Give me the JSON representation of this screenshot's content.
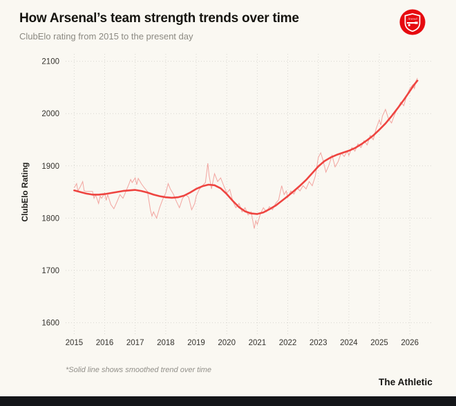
{
  "header": {
    "title": "How Arsenal’s team strength trends over time",
    "subtitle": "ClubElo rating from 2015 to the present day",
    "logo_label": "Arsenal"
  },
  "footer": {
    "footnote": "*Solid line shows smoothed trend over time",
    "brand": "The Athletic"
  },
  "chart_data": {
    "type": "line",
    "title": "How Arsenal’s team strength trends over time",
    "subtitle": "ClubElo rating from 2015 to the present day",
    "xlabel": "",
    "ylabel": "ClubElo Rating",
    "grid": "dotted",
    "legend": "none",
    "x_domain": [
      2014.72,
      2026.72
    ],
    "y_domain": [
      1577,
      2114
    ],
    "x_ticks": [
      2015,
      2016,
      2017,
      2018,
      2019,
      2020,
      2021,
      2022,
      2023,
      2024,
      2025,
      2026
    ],
    "y_ticks": [
      1600,
      1700,
      1800,
      1900,
      2000,
      2100
    ],
    "colors": {
      "raw": "#f2a49f",
      "trend": "#ee4440"
    },
    "series": [
      {
        "name": "ClubElo rating (raw)",
        "style": "raw",
        "points": [
          [
            2015.0,
            1858
          ],
          [
            2015.08,
            1866
          ],
          [
            2015.12,
            1852
          ],
          [
            2015.2,
            1860
          ],
          [
            2015.28,
            1870
          ],
          [
            2015.33,
            1852
          ],
          [
            2015.4,
            1851
          ],
          [
            2015.5,
            1851
          ],
          [
            2015.6,
            1851
          ],
          [
            2015.65,
            1838
          ],
          [
            2015.7,
            1845
          ],
          [
            2015.8,
            1828
          ],
          [
            2015.85,
            1842
          ],
          [
            2015.9,
            1838
          ],
          [
            2016.0,
            1848
          ],
          [
            2016.05,
            1834
          ],
          [
            2016.1,
            1845
          ],
          [
            2016.2,
            1826
          ],
          [
            2016.3,
            1818
          ],
          [
            2016.4,
            1831
          ],
          [
            2016.5,
            1845
          ],
          [
            2016.6,
            1838
          ],
          [
            2016.7,
            1852
          ],
          [
            2016.8,
            1866
          ],
          [
            2016.85,
            1874
          ],
          [
            2016.9,
            1868
          ],
          [
            2017.0,
            1877
          ],
          [
            2017.05,
            1864
          ],
          [
            2017.1,
            1876
          ],
          [
            2017.2,
            1866
          ],
          [
            2017.3,
            1858
          ],
          [
            2017.4,
            1851
          ],
          [
            2017.5,
            1815
          ],
          [
            2017.55,
            1804
          ],
          [
            2017.6,
            1812
          ],
          [
            2017.7,
            1800
          ],
          [
            2017.8,
            1820
          ],
          [
            2017.9,
            1836
          ],
          [
            2018.0,
            1848
          ],
          [
            2018.08,
            1866
          ],
          [
            2018.15,
            1856
          ],
          [
            2018.25,
            1846
          ],
          [
            2018.35,
            1832
          ],
          [
            2018.45,
            1820
          ],
          [
            2018.55,
            1838
          ],
          [
            2018.65,
            1845
          ],
          [
            2018.75,
            1840
          ],
          [
            2018.85,
            1816
          ],
          [
            2018.95,
            1828
          ],
          [
            2019.0,
            1842
          ],
          [
            2019.1,
            1855
          ],
          [
            2019.2,
            1862
          ],
          [
            2019.3,
            1868
          ],
          [
            2019.38,
            1905
          ],
          [
            2019.42,
            1882
          ],
          [
            2019.5,
            1856
          ],
          [
            2019.6,
            1885
          ],
          [
            2019.7,
            1870
          ],
          [
            2019.8,
            1877
          ],
          [
            2019.9,
            1862
          ],
          [
            2020.0,
            1848
          ],
          [
            2020.1,
            1855
          ],
          [
            2020.2,
            1832
          ],
          [
            2020.3,
            1820
          ],
          [
            2020.4,
            1828
          ],
          [
            2020.5,
            1812
          ],
          [
            2020.6,
            1820
          ],
          [
            2020.7,
            1806
          ],
          [
            2020.8,
            1812
          ],
          [
            2020.9,
            1780
          ],
          [
            2020.95,
            1795
          ],
          [
            2021.0,
            1788
          ],
          [
            2021.1,
            1808
          ],
          [
            2021.2,
            1820
          ],
          [
            2021.3,
            1812
          ],
          [
            2021.4,
            1822
          ],
          [
            2021.5,
            1816
          ],
          [
            2021.6,
            1828
          ],
          [
            2021.7,
            1835
          ],
          [
            2021.8,
            1862
          ],
          [
            2021.88,
            1845
          ],
          [
            2021.95,
            1852
          ],
          [
            2022.0,
            1840
          ],
          [
            2022.1,
            1852
          ],
          [
            2022.2,
            1846
          ],
          [
            2022.3,
            1858
          ],
          [
            2022.4,
            1852
          ],
          [
            2022.5,
            1862
          ],
          [
            2022.6,
            1856
          ],
          [
            2022.7,
            1870
          ],
          [
            2022.8,
            1862
          ],
          [
            2022.9,
            1880
          ],
          [
            2023.0,
            1916
          ],
          [
            2023.08,
            1925
          ],
          [
            2023.15,
            1912
          ],
          [
            2023.25,
            1888
          ],
          [
            2023.35,
            1902
          ],
          [
            2023.45,
            1920
          ],
          [
            2023.55,
            1898
          ],
          [
            2023.65,
            1908
          ],
          [
            2023.75,
            1925
          ],
          [
            2023.85,
            1918
          ],
          [
            2023.95,
            1928
          ],
          [
            2024.0,
            1920
          ],
          [
            2024.1,
            1935
          ],
          [
            2024.2,
            1928
          ],
          [
            2024.3,
            1942
          ],
          [
            2024.4,
            1935
          ],
          [
            2024.5,
            1948
          ],
          [
            2024.6,
            1940
          ],
          [
            2024.7,
            1958
          ],
          [
            2024.8,
            1950
          ],
          [
            2024.9,
            1972
          ],
          [
            2025.0,
            1988
          ],
          [
            2025.05,
            1978
          ],
          [
            2025.1,
            1995
          ],
          [
            2025.2,
            2008
          ],
          [
            2025.3,
            1990
          ],
          [
            2025.4,
            1982
          ],
          [
            2025.5,
            1998
          ],
          [
            2025.6,
            2010
          ],
          [
            2025.7,
            2022
          ],
          [
            2025.8,
            2015
          ],
          [
            2025.9,
            2035
          ],
          [
            2026.0,
            2048
          ],
          [
            2026.1,
            2055
          ],
          [
            2026.15,
            2048
          ],
          [
            2026.2,
            2062
          ],
          [
            2026.25,
            2068
          ]
        ]
      },
      {
        "name": "Smoothed trend",
        "style": "trend",
        "points": [
          [
            2015.0,
            1853
          ],
          [
            2015.2,
            1850
          ],
          [
            2015.4,
            1847
          ],
          [
            2015.6,
            1845
          ],
          [
            2015.8,
            1845
          ],
          [
            2016.0,
            1846
          ],
          [
            2016.2,
            1848
          ],
          [
            2016.4,
            1850
          ],
          [
            2016.6,
            1852
          ],
          [
            2016.8,
            1853
          ],
          [
            2017.0,
            1854
          ],
          [
            2017.2,
            1852
          ],
          [
            2017.4,
            1849
          ],
          [
            2017.6,
            1845
          ],
          [
            2017.8,
            1842
          ],
          [
            2018.0,
            1840
          ],
          [
            2018.2,
            1839
          ],
          [
            2018.4,
            1840
          ],
          [
            2018.6,
            1843
          ],
          [
            2018.8,
            1849
          ],
          [
            2019.0,
            1856
          ],
          [
            2019.2,
            1861
          ],
          [
            2019.4,
            1864
          ],
          [
            2019.6,
            1863
          ],
          [
            2019.8,
            1857
          ],
          [
            2020.0,
            1846
          ],
          [
            2020.2,
            1833
          ],
          [
            2020.4,
            1821
          ],
          [
            2020.6,
            1813
          ],
          [
            2020.8,
            1809
          ],
          [
            2021.0,
            1808
          ],
          [
            2021.2,
            1811
          ],
          [
            2021.4,
            1817
          ],
          [
            2021.6,
            1824
          ],
          [
            2021.8,
            1833
          ],
          [
            2022.0,
            1842
          ],
          [
            2022.2,
            1852
          ],
          [
            2022.4,
            1862
          ],
          [
            2022.6,
            1873
          ],
          [
            2022.8,
            1886
          ],
          [
            2023.0,
            1899
          ],
          [
            2023.2,
            1909
          ],
          [
            2023.4,
            1916
          ],
          [
            2023.6,
            1921
          ],
          [
            2023.8,
            1925
          ],
          [
            2024.0,
            1929
          ],
          [
            2024.2,
            1934
          ],
          [
            2024.4,
            1941
          ],
          [
            2024.6,
            1949
          ],
          [
            2024.8,
            1958
          ],
          [
            2025.0,
            1969
          ],
          [
            2025.2,
            1981
          ],
          [
            2025.4,
            1995
          ],
          [
            2025.6,
            2010
          ],
          [
            2025.8,
            2026
          ],
          [
            2026.0,
            2043
          ],
          [
            2026.15,
            2056
          ],
          [
            2026.25,
            2063
          ]
        ]
      }
    ]
  }
}
